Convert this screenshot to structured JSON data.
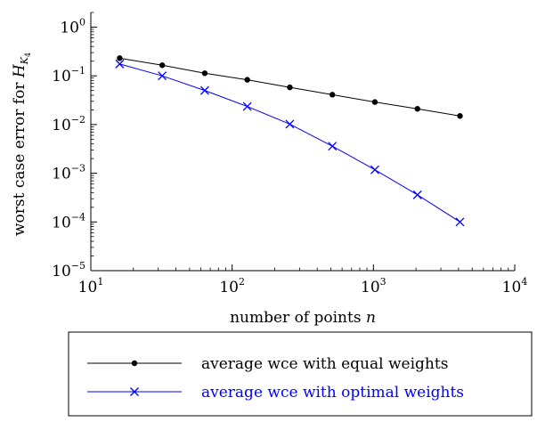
{
  "chart_data": {
    "type": "line",
    "xlabel": "number of points n",
    "ylabel": "worst case error for H_K4",
    "xscale": "log",
    "yscale": "log",
    "xlim": [
      10,
      10000
    ],
    "ylim": [
      1e-05,
      2
    ],
    "x_ticks": [
      {
        "value": 10,
        "base": "10",
        "exp": "1"
      },
      {
        "value": 100,
        "base": "10",
        "exp": "2"
      },
      {
        "value": 1000,
        "base": "10",
        "exp": "3"
      },
      {
        "value": 10000,
        "base": "10",
        "exp": "4"
      }
    ],
    "y_ticks": [
      {
        "value": 1,
        "base": "10",
        "exp": "0"
      },
      {
        "value": 0.1,
        "base": "10",
        "exp": "−1"
      },
      {
        "value": 0.01,
        "base": "10",
        "exp": "−2"
      },
      {
        "value": 0.001,
        "base": "10",
        "exp": "−3"
      },
      {
        "value": 0.0001,
        "base": "10",
        "exp": "−4"
      },
      {
        "value": 1e-05,
        "base": "10",
        "exp": "−5"
      }
    ],
    "x": [
      16,
      32,
      64,
      128,
      256,
      512,
      1024,
      2048,
      4096
    ],
    "series": [
      {
        "name": "average wce with equal weights",
        "color": "#000000",
        "marker": "dot",
        "values": [
          0.23,
          0.165,
          0.113,
          0.083,
          0.058,
          0.041,
          0.029,
          0.021,
          0.015
        ]
      },
      {
        "name": "average wce with optimal weights",
        "color": "#0000ff",
        "marker": "x",
        "values": [
          0.175,
          0.1,
          0.05,
          0.0235,
          0.0102,
          0.0036,
          0.00118,
          0.00036,
          0.0001
        ]
      }
    ],
    "legend_position": "bottom",
    "grid": false
  }
}
